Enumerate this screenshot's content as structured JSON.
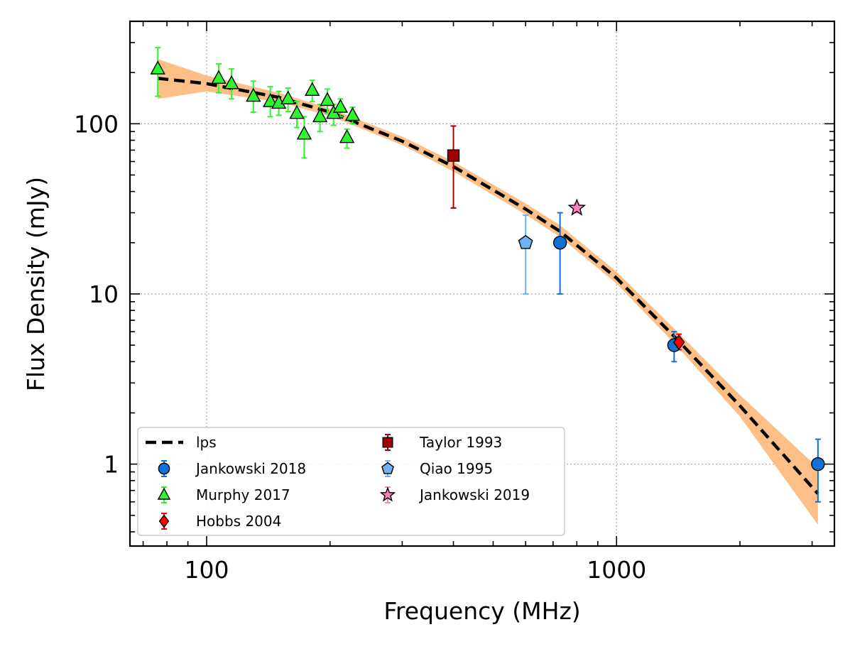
{
  "chart_data": {
    "type": "scatter",
    "xscale": "log",
    "yscale": "log",
    "xlim": [
      65,
      3400
    ],
    "ylim": [
      0.33,
      400
    ],
    "xlabel": "Frequency (MHz)",
    "ylabel": "Flux Density (mJy)",
    "grid": true,
    "xticks": [
      {
        "value": 100,
        "label": "100"
      },
      {
        "value": 1000,
        "label": "1000"
      }
    ],
    "yticks": [
      {
        "value": 1,
        "label": "1"
      },
      {
        "value": 10,
        "label": "10"
      },
      {
        "value": 100,
        "label": "100"
      }
    ],
    "legend_position": "lower-left",
    "fit": {
      "name": "lps",
      "color": "#000000",
      "band_color": "#fdbf87",
      "x": [
        76,
        100,
        150,
        200,
        300,
        400,
        600,
        728,
        1000,
        1400,
        2000,
        3100
      ],
      "y": [
        185,
        172,
        143,
        117,
        79,
        56,
        31.5,
        23.3,
        12.4,
        5.45,
        2.2,
        0.67
      ],
      "band_low": [
        140,
        155,
        134,
        111,
        75,
        52.5,
        29.3,
        21.6,
        11.5,
        4.97,
        1.9,
        0.44
      ],
      "band_high": [
        240,
        192,
        152,
        123,
        84,
        60,
        34,
        25.3,
        13.5,
        6.05,
        2.55,
        0.95
      ]
    },
    "series": [
      {
        "name": "Jankowski 2018",
        "marker": "circle",
        "color": "#1071d6",
        "err_color": "#1071d6",
        "points": [
          [
            728,
            20,
            10,
            30
          ],
          [
            1382,
            5,
            4,
            6
          ],
          [
            3100,
            1,
            0.6,
            1.4
          ]
        ]
      },
      {
        "name": "Murphy 2017",
        "marker": "triangle",
        "color": "#2ef52e",
        "err_color": "#2ef52e",
        "points": [
          [
            76,
            210,
            145,
            280
          ],
          [
            107,
            185,
            152,
            225
          ],
          [
            115,
            172,
            140,
            210
          ],
          [
            130,
            145,
            117,
            178
          ],
          [
            143,
            135,
            110,
            165
          ],
          [
            150,
            132,
            112,
            155
          ],
          [
            158,
            140,
            118,
            162
          ],
          [
            166,
            115,
            95,
            135
          ],
          [
            173,
            87,
            63,
            110
          ],
          [
            181,
            157,
            135,
            180
          ],
          [
            189,
            110,
            90,
            130
          ],
          [
            197,
            137,
            115,
            160
          ],
          [
            204,
            115,
            98,
            130
          ],
          [
            212,
            125,
            110,
            140
          ],
          [
            220,
            83,
            72,
            93
          ],
          [
            227,
            112,
            100,
            125
          ]
        ]
      },
      {
        "name": "Hobbs 2004",
        "marker": "diamond",
        "color": "#ff0000",
        "err_color": "#ff0000",
        "points": [
          [
            1420,
            5.2,
            4.7,
            5.8
          ]
        ]
      },
      {
        "name": "Taylor 1993",
        "marker": "square",
        "color": "#a50000",
        "err_color": "#a50000",
        "points": [
          [
            400,
            65,
            32,
            97
          ]
        ]
      },
      {
        "name": "Qiao 1995",
        "marker": "pentagon",
        "color": "#6fb2f3",
        "err_color": "#6fb2f3",
        "points": [
          [
            600,
            20,
            10,
            29
          ]
        ]
      },
      {
        "name": "Jankowski 2019",
        "marker": "star",
        "color": "#ff7fbf",
        "err_color": "#ff7fbf",
        "points": [
          [
            800,
            32,
            30,
            34
          ]
        ]
      }
    ]
  }
}
